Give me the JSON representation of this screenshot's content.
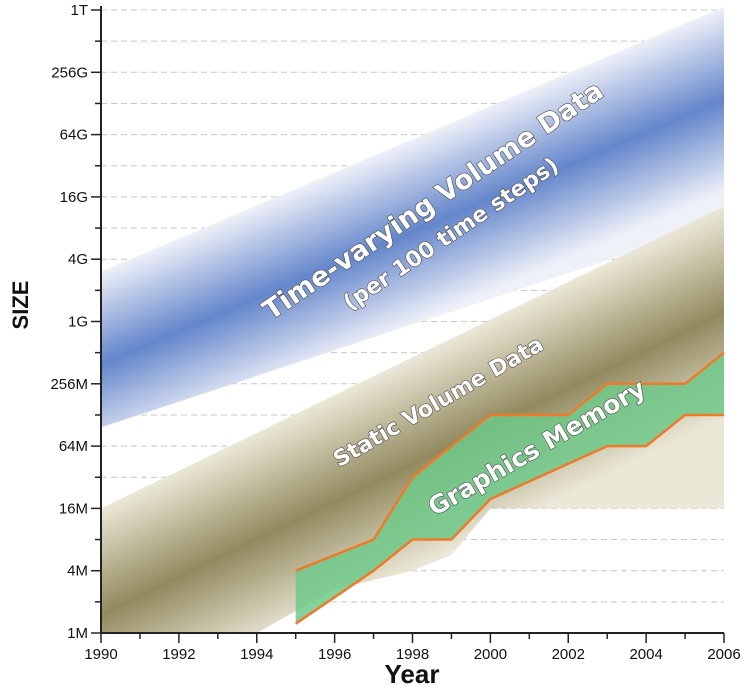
{
  "chart_data": {
    "type": "area",
    "xlabel": "Year",
    "ylabel": "SIZE",
    "x_ticks": [
      "1990",
      "1992",
      "1994",
      "1996",
      "1998",
      "2000",
      "2002",
      "2004",
      "2006"
    ],
    "y_ticks": [
      "1M",
      "4M",
      "16M",
      "64M",
      "256M",
      "1G",
      "4G",
      "16G",
      "64G",
      "256G",
      "1T"
    ],
    "xlim": [
      1990,
      2006
    ],
    "ylim_log2": [
      20,
      40
    ],
    "y_scale": "log2",
    "grid": true,
    "series": [
      {
        "name": "Time-varying Volume Data",
        "name2": "(per 100 time steps)",
        "kind": "band",
        "color": "#5b7fc8",
        "lower": [
          [
            1990,
            26.6
          ],
          [
            2006,
            33.2
          ]
        ],
        "upper": [
          [
            1990,
            31.6
          ],
          [
            2006,
            40.1
          ]
        ]
      },
      {
        "name": "Static Volume Data",
        "kind": "band",
        "color": "#8c8355",
        "lower": [
          [
            1990,
            20.0
          ],
          [
            1994,
            20.0
          ],
          [
            1996,
            21.4
          ],
          [
            1998,
            22.0
          ],
          [
            1999,
            22.5
          ],
          [
            2000,
            24.0
          ],
          [
            2006,
            24.0
          ]
        ],
        "upper": [
          [
            1990,
            24.0
          ],
          [
            2006,
            33.7
          ]
        ]
      },
      {
        "name": "Graphics Memory",
        "kind": "band",
        "color": "#6ec98a",
        "edge_color": "#ee7a2a",
        "lower": [
          [
            1995,
            20.3
          ],
          [
            1997,
            22.0
          ],
          [
            1998,
            23.0
          ],
          [
            1999,
            23.0
          ],
          [
            2000,
            24.3
          ],
          [
            2003,
            26.0
          ],
          [
            2004,
            26.0
          ],
          [
            2005,
            27.0
          ],
          [
            2006,
            27.0
          ]
        ],
        "upper": [
          [
            1995,
            22.0
          ],
          [
            1997,
            23.0
          ],
          [
            1998,
            25.0
          ],
          [
            2000,
            27.0
          ],
          [
            2002,
            27.0
          ],
          [
            2003,
            28.0
          ],
          [
            2005,
            28.0
          ],
          [
            2006,
            29.0
          ]
        ]
      }
    ]
  }
}
